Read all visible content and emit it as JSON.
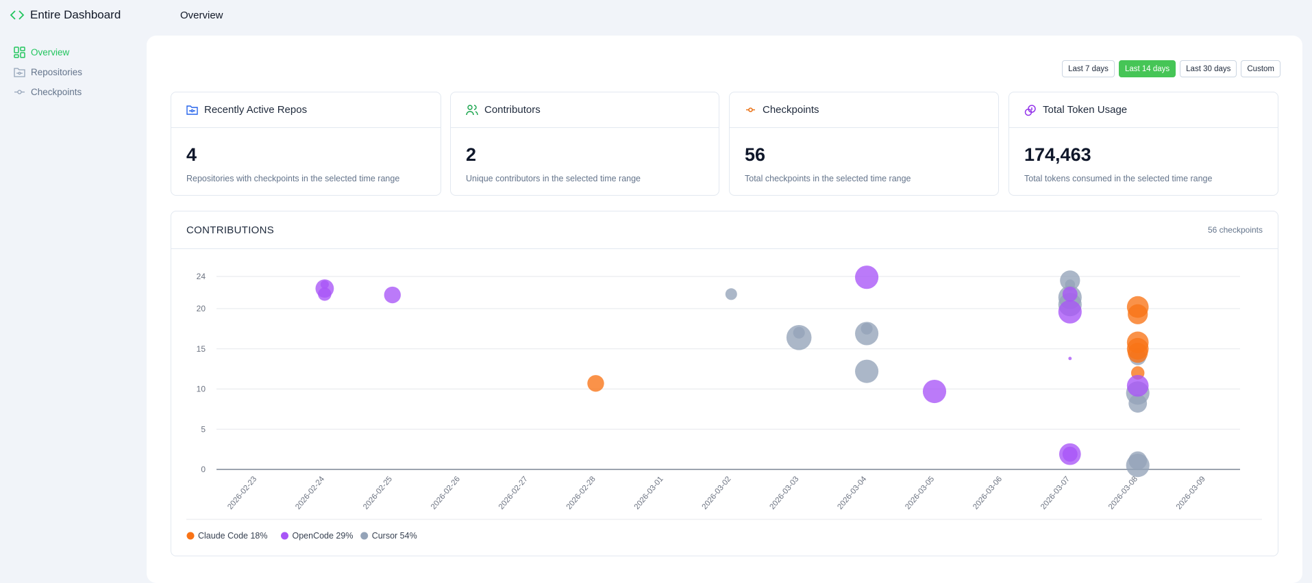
{
  "app": {
    "title": "Entire Dashboard",
    "page_title": "Overview"
  },
  "sidebar": {
    "items": [
      {
        "label": "Overview",
        "icon": "grid-icon",
        "active": true
      },
      {
        "label": "Repositories",
        "icon": "folder-icon"
      },
      {
        "label": "Checkpoints",
        "icon": "commit-icon"
      }
    ]
  },
  "ranges": [
    {
      "label": "Last 7 days"
    },
    {
      "label": "Last 14 days",
      "active": true
    },
    {
      "label": "Last 30 days"
    },
    {
      "label": "Custom"
    }
  ],
  "cards": [
    {
      "title": "Recently Active Repos",
      "value": "4",
      "desc": "Repositories with checkpoints in the selected time range",
      "icon": "folder-icon",
      "color": "#2563eb"
    },
    {
      "title": "Contributors",
      "value": "2",
      "desc": "Unique contributors in the selected time range",
      "icon": "users-icon",
      "color": "#16a34a"
    },
    {
      "title": "Checkpoints",
      "value": "56",
      "desc": "Total checkpoints in the selected time range",
      "icon": "commit-icon",
      "color": "#ea7317"
    },
    {
      "title": "Total Token Usage",
      "value": "174,463",
      "desc": "Total tokens consumed in the selected time range",
      "icon": "coins-icon",
      "color": "#9333ea"
    }
  ],
  "contributions": {
    "title": "CONTRIBUTIONS",
    "count": "56 checkpoints"
  },
  "chart_data": {
    "type": "scatter",
    "x_categories": [
      "2026-02-23",
      "2026-02-24",
      "2026-02-25",
      "2026-02-26",
      "2026-02-27",
      "2026-02-28",
      "2026-03-01",
      "2026-03-02",
      "2026-03-03",
      "2026-03-04",
      "2026-03-05",
      "2026-03-06",
      "2026-03-07",
      "2026-03-08",
      "2026-03-09"
    ],
    "y_ticks": [
      0,
      5,
      10,
      15,
      20,
      24
    ],
    "ylim": [
      0,
      24
    ],
    "grid": true,
    "legend_placement": "bottom-left",
    "legend": [
      {
        "name": "Claude Code 18%",
        "key": "claude",
        "color": "#f97316"
      },
      {
        "name": "OpenCode 29%",
        "key": "opencode",
        "color": "#a855f7"
      },
      {
        "name": "Cursor 54%",
        "key": "cursor",
        "color": "#94a3b8"
      }
    ],
    "points": [
      {
        "x": "2026-02-24",
        "y": 22.5,
        "s": 11,
        "k": "opencode"
      },
      {
        "x": "2026-02-24",
        "y": 21.8,
        "s": 8,
        "k": "opencode"
      },
      {
        "x": "2026-02-24",
        "y": 23,
        "s": 5,
        "k": "opencode"
      },
      {
        "x": "2026-02-25",
        "y": 21.7,
        "s": 10,
        "k": "opencode"
      },
      {
        "x": "2026-02-28",
        "y": 10.7,
        "s": 10,
        "k": "claude"
      },
      {
        "x": "2026-03-02",
        "y": 21.8,
        "s": 7,
        "k": "cursor"
      },
      {
        "x": "2026-03-03",
        "y": 16.4,
        "s": 15,
        "k": "cursor"
      },
      {
        "x": "2026-03-03",
        "y": 17,
        "s": 7,
        "k": "cursor"
      },
      {
        "x": "2026-03-04",
        "y": 23.9,
        "s": 14,
        "k": "opencode"
      },
      {
        "x": "2026-03-04",
        "y": 16.9,
        "s": 14,
        "k": "cursor"
      },
      {
        "x": "2026-03-04",
        "y": 17.5,
        "s": 7,
        "k": "cursor"
      },
      {
        "x": "2026-03-04",
        "y": 12.2,
        "s": 14,
        "k": "cursor"
      },
      {
        "x": "2026-03-05",
        "y": 9.7,
        "s": 14,
        "k": "opencode"
      },
      {
        "x": "2026-03-07",
        "y": 23.5,
        "s": 12,
        "k": "cursor"
      },
      {
        "x": "2026-03-07",
        "y": 23.0,
        "s": 6,
        "k": "cursor"
      },
      {
        "x": "2026-03-07",
        "y": 21.4,
        "s": 14,
        "k": "cursor"
      },
      {
        "x": "2026-03-07",
        "y": 20.5,
        "s": 14,
        "k": "cursor"
      },
      {
        "x": "2026-03-07",
        "y": 21.8,
        "s": 9,
        "k": "opencode"
      },
      {
        "x": "2026-03-07",
        "y": 19.6,
        "s": 14,
        "k": "opencode"
      },
      {
        "x": "2026-03-07",
        "y": 13.8,
        "s": 2,
        "k": "opencode"
      },
      {
        "x": "2026-03-07",
        "y": 1.9,
        "s": 13,
        "k": "opencode"
      },
      {
        "x": "2026-03-07",
        "y": 1.9,
        "s": 9,
        "k": "opencode"
      },
      {
        "x": "2026-03-08",
        "y": 20.2,
        "s": 13,
        "k": "claude"
      },
      {
        "x": "2026-03-08",
        "y": 19.3,
        "s": 12,
        "k": "claude"
      },
      {
        "x": "2026-03-08",
        "y": 14.0,
        "s": 10,
        "k": "cursor"
      },
      {
        "x": "2026-03-08",
        "y": 15.8,
        "s": 13,
        "k": "claude"
      },
      {
        "x": "2026-03-08",
        "y": 15.0,
        "s": 13,
        "k": "claude"
      },
      {
        "x": "2026-03-08",
        "y": 14.5,
        "s": 12,
        "k": "claude"
      },
      {
        "x": "2026-03-08",
        "y": 12,
        "s": 8,
        "k": "claude"
      },
      {
        "x": "2026-03-08",
        "y": 9.5,
        "s": 14,
        "k": "cursor"
      },
      {
        "x": "2026-03-08",
        "y": 8.2,
        "s": 11,
        "k": "cursor"
      },
      {
        "x": "2026-03-08",
        "y": 10.4,
        "s": 13,
        "k": "opencode"
      },
      {
        "x": "2026-03-08",
        "y": 1.1,
        "s": 11,
        "k": "cursor"
      },
      {
        "x": "2026-03-08",
        "y": 0.5,
        "s": 14,
        "k": "cursor"
      }
    ]
  }
}
